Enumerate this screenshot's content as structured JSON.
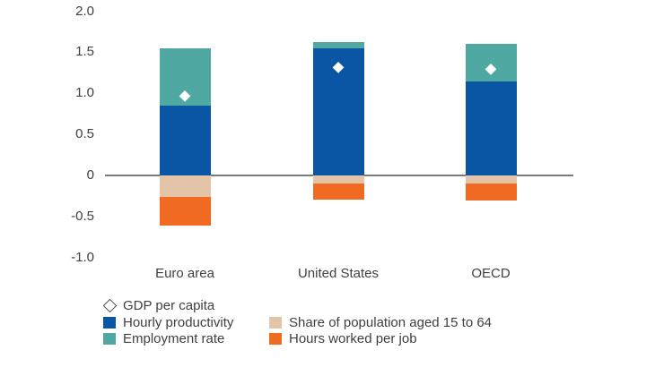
{
  "chart_data": {
    "type": "bar",
    "stacked": true,
    "categories": [
      "Euro area",
      "United States",
      "OECD"
    ],
    "series": [
      {
        "key": "hourly_productivity",
        "name": "Hourly productivity",
        "values": [
          0.85,
          1.55,
          1.14
        ]
      },
      {
        "key": "employment_rate",
        "name": "Employment rate",
        "values": [
          0.7,
          0.07,
          0.46
        ]
      },
      {
        "key": "share_population",
        "name": "Share of population aged 15 to 64",
        "values": [
          -0.26,
          -0.1,
          -0.1
        ]
      },
      {
        "key": "hours_worked",
        "name": "Hours worked per job",
        "values": [
          -0.35,
          -0.2,
          -0.21
        ]
      }
    ],
    "markers": {
      "key": "gdp_per_capita",
      "name": "GDP per capita",
      "shape": "diamond",
      "values": [
        0.97,
        1.32,
        1.3
      ]
    },
    "yticks": [
      {
        "label": "2.0",
        "value": 2.0
      },
      {
        "label": "1.5",
        "value": 1.5
      },
      {
        "label": "1.0",
        "value": 1.0
      },
      {
        "label": "0.5",
        "value": 0.5
      },
      {
        "label": "0",
        "value": 0
      },
      {
        "label": "-0.5",
        "value": -0.5
      },
      {
        "label": "-1.0",
        "value": -1.0
      }
    ],
    "ylim": [
      -1.0,
      2.0
    ],
    "grid": false,
    "legend_position": "bottom"
  },
  "colors": {
    "hourly_productivity": "#0B55A5",
    "employment_rate": "#4FA8A2",
    "share_population": "#E4C4A9",
    "hours_worked": "#F16A21",
    "marker_fill": "#ffffff",
    "axis_line": "#7b7b7b",
    "text": "#3f3f3f"
  }
}
